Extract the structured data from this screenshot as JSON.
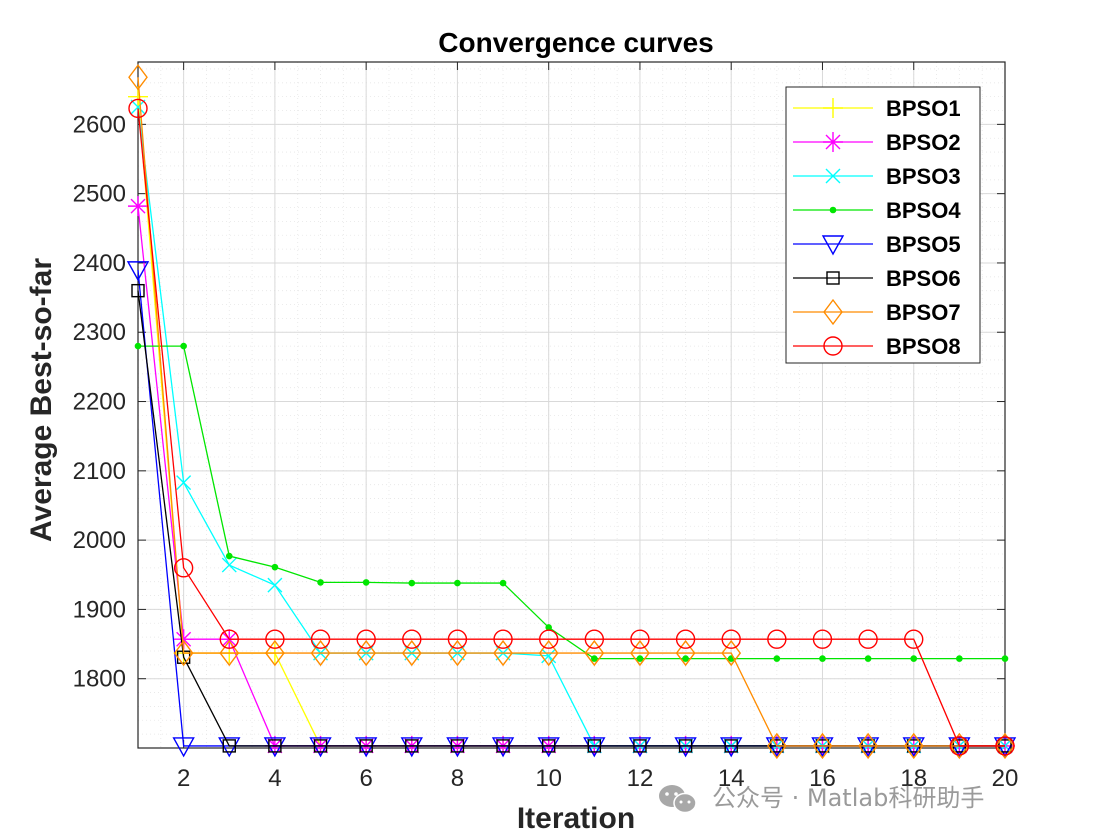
{
  "chart_data": {
    "type": "line",
    "title": "Convergence curves",
    "xlabel": "Iteration",
    "ylabel": "Average Best-so-far",
    "xlim": [
      1,
      20
    ],
    "ylim": [
      1700,
      2690
    ],
    "xticks": [
      2,
      4,
      6,
      8,
      10,
      12,
      14,
      16,
      18,
      20
    ],
    "yticks": [
      1800,
      1900,
      2000,
      2100,
      2200,
      2300,
      2400,
      2500,
      2600
    ],
    "grid": true,
    "minor_grid": true,
    "legend_position": "top-right",
    "x": [
      1,
      2,
      3,
      4,
      5,
      6,
      7,
      8,
      9,
      10,
      11,
      12,
      13,
      14,
      15,
      16,
      17,
      18,
      19,
      20
    ],
    "series": [
      {
        "name": "BPSO1",
        "color": "#ffff00",
        "marker": "plus",
        "values": [
          2640,
          1837,
          1837,
          1837,
          1703,
          1703,
          1703,
          1703,
          1703,
          1703,
          1703,
          1703,
          1703,
          1703,
          1703,
          1703,
          1703,
          1703,
          1703,
          1703
        ]
      },
      {
        "name": "BPSO2",
        "color": "#ff00ff",
        "marker": "asterisk",
        "values": [
          2482,
          1857,
          1857,
          1703,
          1703,
          1703,
          1703,
          1703,
          1703,
          1703,
          1703,
          1703,
          1703,
          1703,
          1703,
          1703,
          1703,
          1703,
          1703,
          1703
        ]
      },
      {
        "name": "BPSO3",
        "color": "#00ffff",
        "marker": "x",
        "values": [
          2625,
          2083,
          1964,
          1935,
          1837,
          1837,
          1837,
          1837,
          1837,
          1833,
          1703,
          1703,
          1703,
          1703,
          1703,
          1703,
          1703,
          1703,
          1703,
          1703
        ]
      },
      {
        "name": "BPSO4",
        "color": "#00e600",
        "marker": "dot",
        "values": [
          2280,
          2280,
          1977,
          1961,
          1939,
          1939,
          1938,
          1938,
          1938,
          1874,
          1829,
          1829,
          1829,
          1829,
          1829,
          1829,
          1829,
          1829,
          1829,
          1829
        ]
      },
      {
        "name": "BPSO5",
        "color": "#0000ff",
        "marker": "triangle-down",
        "values": [
          2390,
          1703,
          1703,
          1703,
          1703,
          1703,
          1703,
          1703,
          1703,
          1703,
          1703,
          1703,
          1703,
          1703,
          1703,
          1703,
          1703,
          1703,
          1703,
          1703
        ]
      },
      {
        "name": "BPSO6",
        "color": "#000000",
        "marker": "square",
        "values": [
          2360,
          1831,
          1703,
          1703,
          1703,
          1703,
          1703,
          1703,
          1703,
          1703,
          1703,
          1703,
          1703,
          1703,
          1703,
          1703,
          1703,
          1703,
          1703,
          1703
        ]
      },
      {
        "name": "BPSO7",
        "color": "#ff8c00",
        "marker": "diamond",
        "values": [
          2668,
          1837,
          1837,
          1837,
          1837,
          1837,
          1837,
          1837,
          1837,
          1837,
          1837,
          1837,
          1837,
          1837,
          1703,
          1703,
          1703,
          1703,
          1703,
          1703
        ]
      },
      {
        "name": "BPSO8",
        "color": "#ff0000",
        "marker": "circle",
        "values": [
          2623,
          1960,
          1857,
          1857,
          1857,
          1857,
          1857,
          1857,
          1857,
          1857,
          1857,
          1857,
          1857,
          1857,
          1857,
          1857,
          1857,
          1857,
          1703,
          1703
        ]
      }
    ]
  },
  "watermark": {
    "text": "公众号 · Matlab科研助手",
    "icon": "wechat-icon",
    "color": "#9a9a9a"
  }
}
